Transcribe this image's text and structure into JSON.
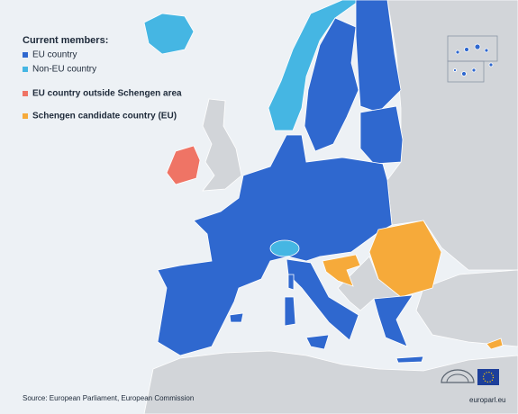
{
  "legend": {
    "title": "Current members:",
    "items": [
      {
        "label": "EU country",
        "color": "#2f68cf"
      },
      {
        "label": "Non-EU country",
        "color": "#45b6e3"
      },
      {
        "label": "EU country outside Schengen area",
        "color": "#ef7465"
      },
      {
        "label": "Schengen candidate country (EU)",
        "color": "#f6aa3a"
      }
    ]
  },
  "source": "Source: European Parliament, European Commission",
  "brand": "europarl.eu"
}
